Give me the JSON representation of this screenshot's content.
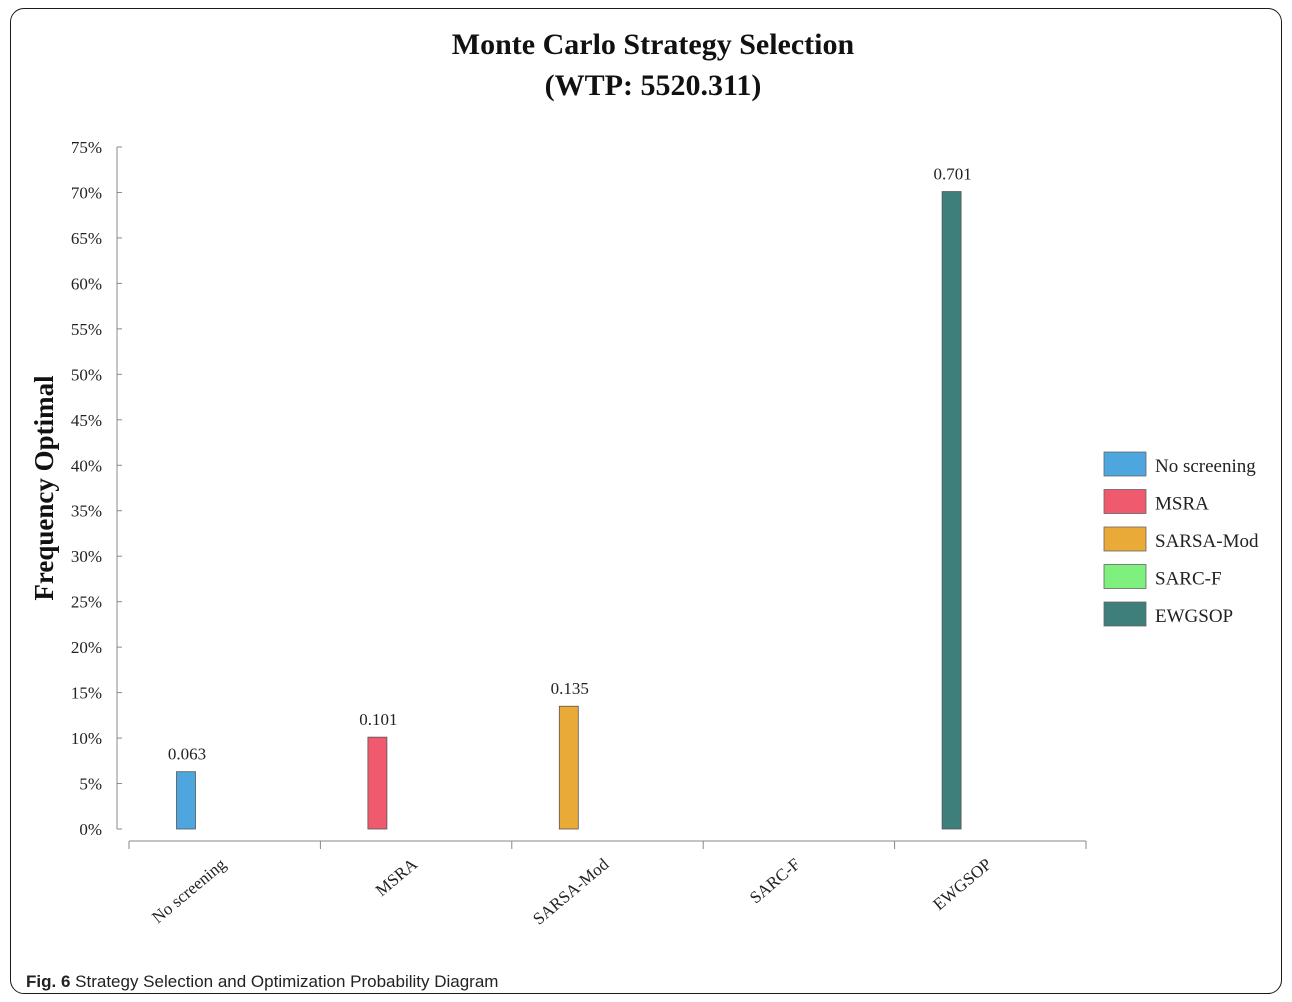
{
  "chart_data": {
    "type": "bar",
    "title_line1": "Monte Carlo Strategy Selection",
    "title_line2": "(WTP: 5520.311)",
    "ylabel": "Frequency Optimal",
    "xlabel": "",
    "ylim": [
      0,
      0.75
    ],
    "y_ticks": [
      "0%",
      "5%",
      "10%",
      "15%",
      "20%",
      "25%",
      "30%",
      "35%",
      "40%",
      "45%",
      "50%",
      "55%",
      "60%",
      "65%",
      "70%",
      "75%"
    ],
    "categories": [
      "No screening",
      "MSRA",
      "SARSA-Mod",
      "SARC-F",
      "EWGSOP"
    ],
    "values": [
      0.063,
      0.101,
      0.135,
      0,
      0.701
    ],
    "data_labels": [
      "0.063",
      "0.101",
      "0.135",
      "",
      "0.701"
    ],
    "colors": [
      "#4ea6de",
      "#f05a6e",
      "#eaaa37",
      "#7ef07e",
      "#3e7f7b"
    ],
    "legend": {
      "placement": "right",
      "entries": [
        "No screening",
        "MSRA",
        "SARSA-Mod",
        "SARC-F",
        "EWGSOP"
      ]
    },
    "grid": false
  },
  "caption": {
    "label": "Fig. 6",
    "text": "Strategy Selection and Optimization Probability Diagram"
  }
}
